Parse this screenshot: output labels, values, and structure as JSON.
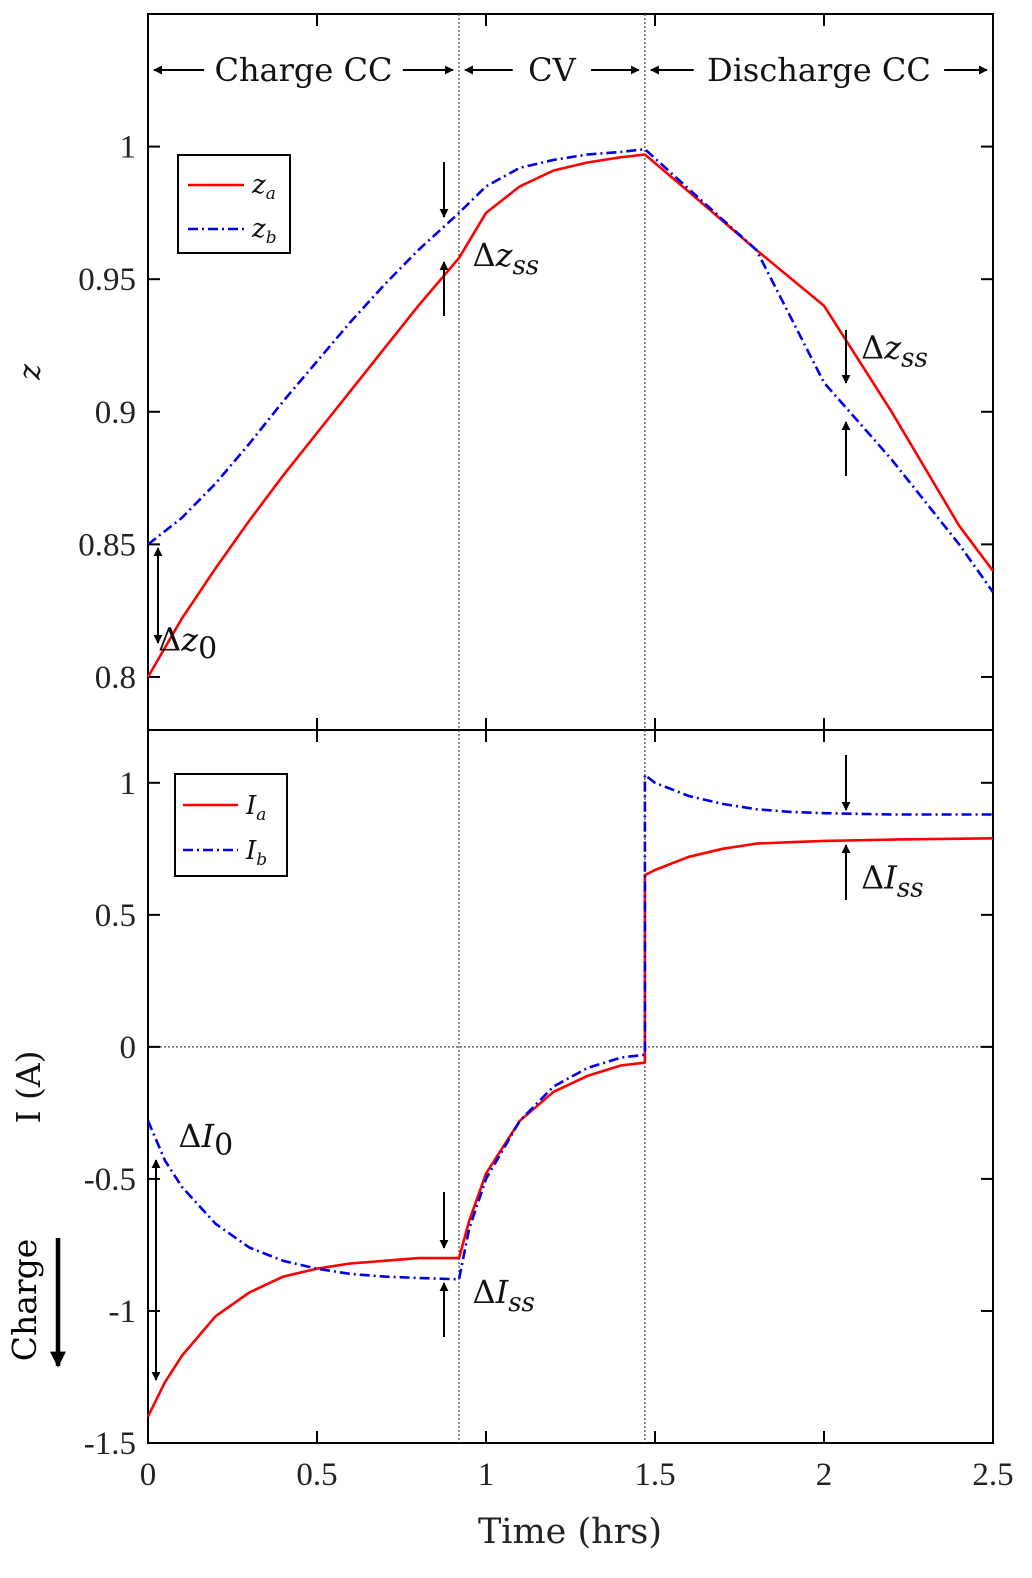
{
  "chart_data": [
    {
      "type": "line",
      "ylabel": "z",
      "xlim": [
        0,
        2.5
      ],
      "ylim": [
        0.78,
        1.05
      ],
      "xticks": [
        0,
        0.5,
        1,
        1.5,
        2,
        2.5
      ],
      "xtick_labels": [
        "",
        "",
        "",
        "",
        "",
        ""
      ],
      "yticks": [
        0.8,
        0.85,
        0.9,
        0.95,
        1
      ],
      "ytick_labels": [
        "0.8",
        "0.85",
        "0.9",
        "0.95",
        "1"
      ],
      "vlines": [
        0.92,
        1.47
      ],
      "phase_labels": [
        {
          "text": "Charge CC",
          "from": 0,
          "to": 0.92
        },
        {
          "text": "CV",
          "from": 0.92,
          "to": 1.47
        },
        {
          "text": "Discharge CC",
          "from": 1.47,
          "to": 2.5
        }
      ],
      "legend": {
        "position": "top-left"
      },
      "series": [
        {
          "name": "z_a",
          "color": "#ff0000",
          "dash": "solid",
          "x": [
            0,
            0.1,
            0.2,
            0.3,
            0.4,
            0.5,
            0.6,
            0.7,
            0.8,
            0.92,
            1.0,
            1.1,
            1.2,
            1.3,
            1.4,
            1.47,
            1.6,
            1.8,
            2.0,
            2.2,
            2.4,
            2.5
          ],
          "y": [
            0.8,
            0.822,
            0.841,
            0.859,
            0.876,
            0.892,
            0.908,
            0.924,
            0.94,
            0.958,
            0.975,
            0.985,
            0.991,
            0.994,
            0.996,
            0.997,
            0.983,
            0.961,
            0.94,
            0.9,
            0.857,
            0.84
          ]
        },
        {
          "name": "z_b",
          "color": "#0000ee",
          "dash": "dashdot",
          "x": [
            0,
            0.1,
            0.2,
            0.3,
            0.4,
            0.5,
            0.6,
            0.7,
            0.8,
            0.92,
            1.0,
            1.1,
            1.2,
            1.3,
            1.4,
            1.47,
            1.6,
            1.8,
            2.0,
            2.2,
            2.4,
            2.5
          ],
          "y": [
            0.85,
            0.86,
            0.873,
            0.888,
            0.904,
            0.919,
            0.934,
            0.948,
            0.961,
            0.975,
            0.985,
            0.992,
            0.995,
            0.997,
            0.998,
            0.999,
            0.984,
            0.961,
            0.911,
            0.882,
            0.85,
            0.832
          ]
        }
      ],
      "annotations": [
        {
          "text": "Δz",
          "subscript": "0",
          "x": 0.03,
          "y": 0.81
        },
        {
          "text": "Δz",
          "subscript": "ss",
          "x": 0.96,
          "y": 0.955
        },
        {
          "text": "Δz",
          "subscript": "ss",
          "x": 2.11,
          "y": 0.92
        }
      ]
    },
    {
      "type": "line",
      "xlabel": "Time (hrs)",
      "ylabel": "I (A)",
      "xlim": [
        0,
        2.5
      ],
      "ylim": [
        -1.5,
        1.2
      ],
      "xticks": [
        0,
        0.5,
        1,
        1.5,
        2,
        2.5
      ],
      "xtick_labels": [
        "0",
        "0.5",
        "1",
        "1.5",
        "2",
        "2.5"
      ],
      "yticks": [
        -1.5,
        -1,
        -0.5,
        0,
        0.5,
        1
      ],
      "ytick_labels": [
        "-1.5",
        "-1",
        "-0.5",
        "0",
        "0.5",
        "1"
      ],
      "vlines": [
        0.92,
        1.47
      ],
      "hlines": [
        0
      ],
      "legend": {
        "position": "top-left"
      },
      "side_label": "Charge",
      "series": [
        {
          "name": "I_a",
          "color": "#ff0000",
          "dash": "solid",
          "x": [
            0,
            0.05,
            0.1,
            0.2,
            0.3,
            0.4,
            0.5,
            0.6,
            0.7,
            0.8,
            0.92,
            0.95,
            1.0,
            1.1,
            1.2,
            1.3,
            1.4,
            1.47,
            1.47,
            1.5,
            1.6,
            1.7,
            1.8,
            1.9,
            2.0,
            2.2,
            2.5
          ],
          "y": [
            -1.4,
            -1.27,
            -1.17,
            -1.02,
            -0.93,
            -0.87,
            -0.84,
            -0.82,
            -0.81,
            -0.8,
            -0.8,
            -0.66,
            -0.48,
            -0.28,
            -0.17,
            -0.11,
            -0.07,
            -0.06,
            0.65,
            0.67,
            0.72,
            0.75,
            0.77,
            0.775,
            0.78,
            0.785,
            0.79
          ]
        },
        {
          "name": "I_b",
          "color": "#0000ee",
          "dash": "dashdot",
          "x": [
            0,
            0.05,
            0.1,
            0.2,
            0.3,
            0.4,
            0.5,
            0.6,
            0.7,
            0.8,
            0.92,
            0.95,
            1.0,
            1.1,
            1.2,
            1.3,
            1.4,
            1.47,
            1.47,
            1.5,
            1.6,
            1.7,
            1.8,
            1.9,
            2.0,
            2.2,
            2.5
          ],
          "y": [
            -0.28,
            -0.43,
            -0.53,
            -0.67,
            -0.76,
            -0.81,
            -0.84,
            -0.86,
            -0.87,
            -0.875,
            -0.88,
            -0.69,
            -0.5,
            -0.28,
            -0.15,
            -0.08,
            -0.04,
            -0.03,
            1.03,
            1.0,
            0.95,
            0.92,
            0.9,
            0.89,
            0.885,
            0.88,
            0.88
          ]
        }
      ],
      "annotations": [
        {
          "text": "ΔI",
          "subscript": "0",
          "x": 0.09,
          "y": -0.38
        },
        {
          "text": "ΔI",
          "subscript": "ss",
          "x": 0.96,
          "y": -0.97
        },
        {
          "text": "ΔI",
          "subscript": "ss",
          "x": 2.11,
          "y": 0.6
        }
      ]
    }
  ]
}
